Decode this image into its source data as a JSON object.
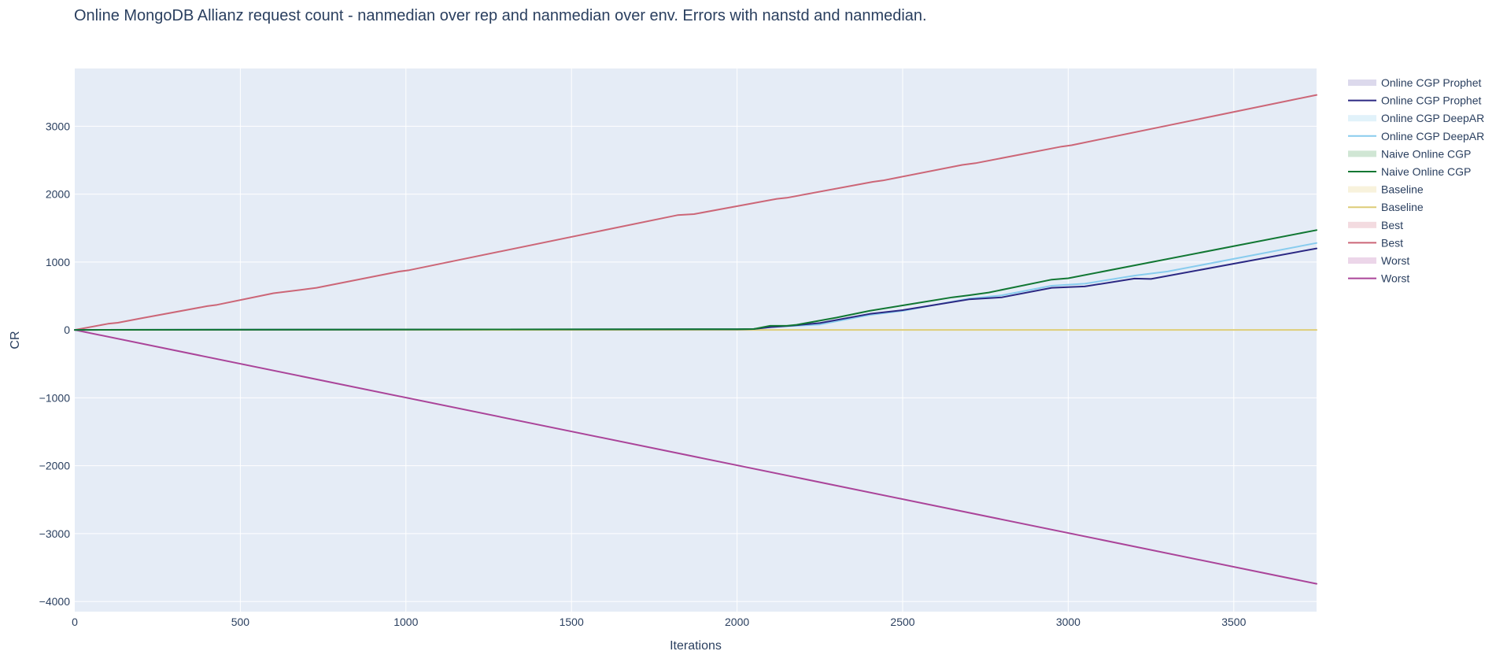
{
  "chart_data": {
    "type": "line",
    "title": "Online MongoDB Allianz request count - nanmedian over rep and nanmedian over env. Errors with nanstd and nanmedian.",
    "xlabel": "Iterations",
    "ylabel": "CR",
    "xlim": [
      0,
      3750
    ],
    "ylim": [
      -4150,
      3850
    ],
    "x_ticks": [
      0,
      500,
      1000,
      1500,
      2000,
      2500,
      3000,
      3500
    ],
    "y_ticks": [
      3000,
      2000,
      1000,
      0,
      -1000,
      -2000,
      -3000,
      -4000
    ],
    "y_tick_labels": [
      "3000",
      "2000",
      "1000",
      "0",
      "−1000",
      "−2000",
      "−3000",
      "−4000"
    ],
    "grid": true,
    "legend_position": "right",
    "legend": [
      {
        "label": "Online CGP Prophet",
        "kind": "band",
        "color": "#dcd9ec"
      },
      {
        "label": "Online CGP Prophet",
        "kind": "line",
        "color": "#2b2883"
      },
      {
        "label": "Online CGP DeepAR",
        "kind": "band",
        "color": "#e1f2fa"
      },
      {
        "label": "Online CGP DeepAR",
        "kind": "line",
        "color": "#88ccee"
      },
      {
        "label": "Naive Online CGP",
        "kind": "band",
        "color": "#d0e6d4"
      },
      {
        "label": "Naive Online CGP",
        "kind": "line",
        "color": "#117733"
      },
      {
        "label": "Baseline",
        "kind": "band",
        "color": "#f8f2dc"
      },
      {
        "label": "Baseline",
        "kind": "line",
        "color": "#ddcc77"
      },
      {
        "label": "Best",
        "kind": "band",
        "color": "#f3dbe0"
      },
      {
        "label": "Best",
        "kind": "line",
        "color": "#cc6677"
      },
      {
        "label": "Worst",
        "kind": "band",
        "color": "#ecd6e9"
      },
      {
        "label": "Worst",
        "kind": "line",
        "color": "#aa4499"
      }
    ],
    "series": [
      {
        "name": "Best",
        "color": "#cc6677",
        "x": [
          0,
          100,
          130,
          200,
          400,
          430,
          600,
          700,
          730,
          980,
          1010,
          1820,
          1870,
          2120,
          2150,
          2410,
          2440,
          2680,
          2720,
          2980,
          3010,
          3750
        ],
        "y": [
          0,
          90,
          105,
          170,
          350,
          370,
          540,
          600,
          620,
          860,
          880,
          1690,
          1705,
          1930,
          1945,
          2180,
          2200,
          2430,
          2455,
          2700,
          2720,
          3460
        ]
      },
      {
        "name": "Worst",
        "color": "#aa4499",
        "x": [
          0,
          3750
        ],
        "y": [
          0,
          -3740
        ]
      },
      {
        "name": "Baseline",
        "color": "#ddcc77",
        "x": [
          0,
          3750
        ],
        "y": [
          0,
          0
        ]
      },
      {
        "name": "Online CGP DeepAR",
        "color": "#88ccee",
        "x": [
          0,
          1000,
          2000,
          2050,
          2100,
          2160,
          2250,
          2400,
          2500,
          2700,
          2800,
          2950,
          3050,
          3200,
          3300,
          3750
        ],
        "y": [
          0,
          5,
          10,
          12,
          40,
          55,
          80,
          220,
          280,
          460,
          510,
          650,
          680,
          800,
          860,
          1280
        ]
      },
      {
        "name": "Online CGP Prophet",
        "color": "#2b2883",
        "x": [
          0,
          1000,
          2000,
          2050,
          2100,
          2160,
          2250,
          2400,
          2500,
          2700,
          2800,
          2950,
          3050,
          3200,
          3250,
          3750
        ],
        "y": [
          0,
          5,
          10,
          12,
          40,
          60,
          100,
          235,
          290,
          450,
          480,
          620,
          640,
          755,
          750,
          1200
        ]
      },
      {
        "name": "Naive Online CGP",
        "color": "#117733",
        "x": [
          0,
          1000,
          2000,
          2050,
          2100,
          2150,
          2180,
          2300,
          2400,
          2500,
          2650,
          2700,
          2760,
          2950,
          3000,
          3750
        ],
        "y": [
          0,
          5,
          10,
          12,
          60,
          60,
          75,
          180,
          280,
          360,
          480,
          510,
          550,
          740,
          760,
          1470
        ]
      }
    ]
  }
}
